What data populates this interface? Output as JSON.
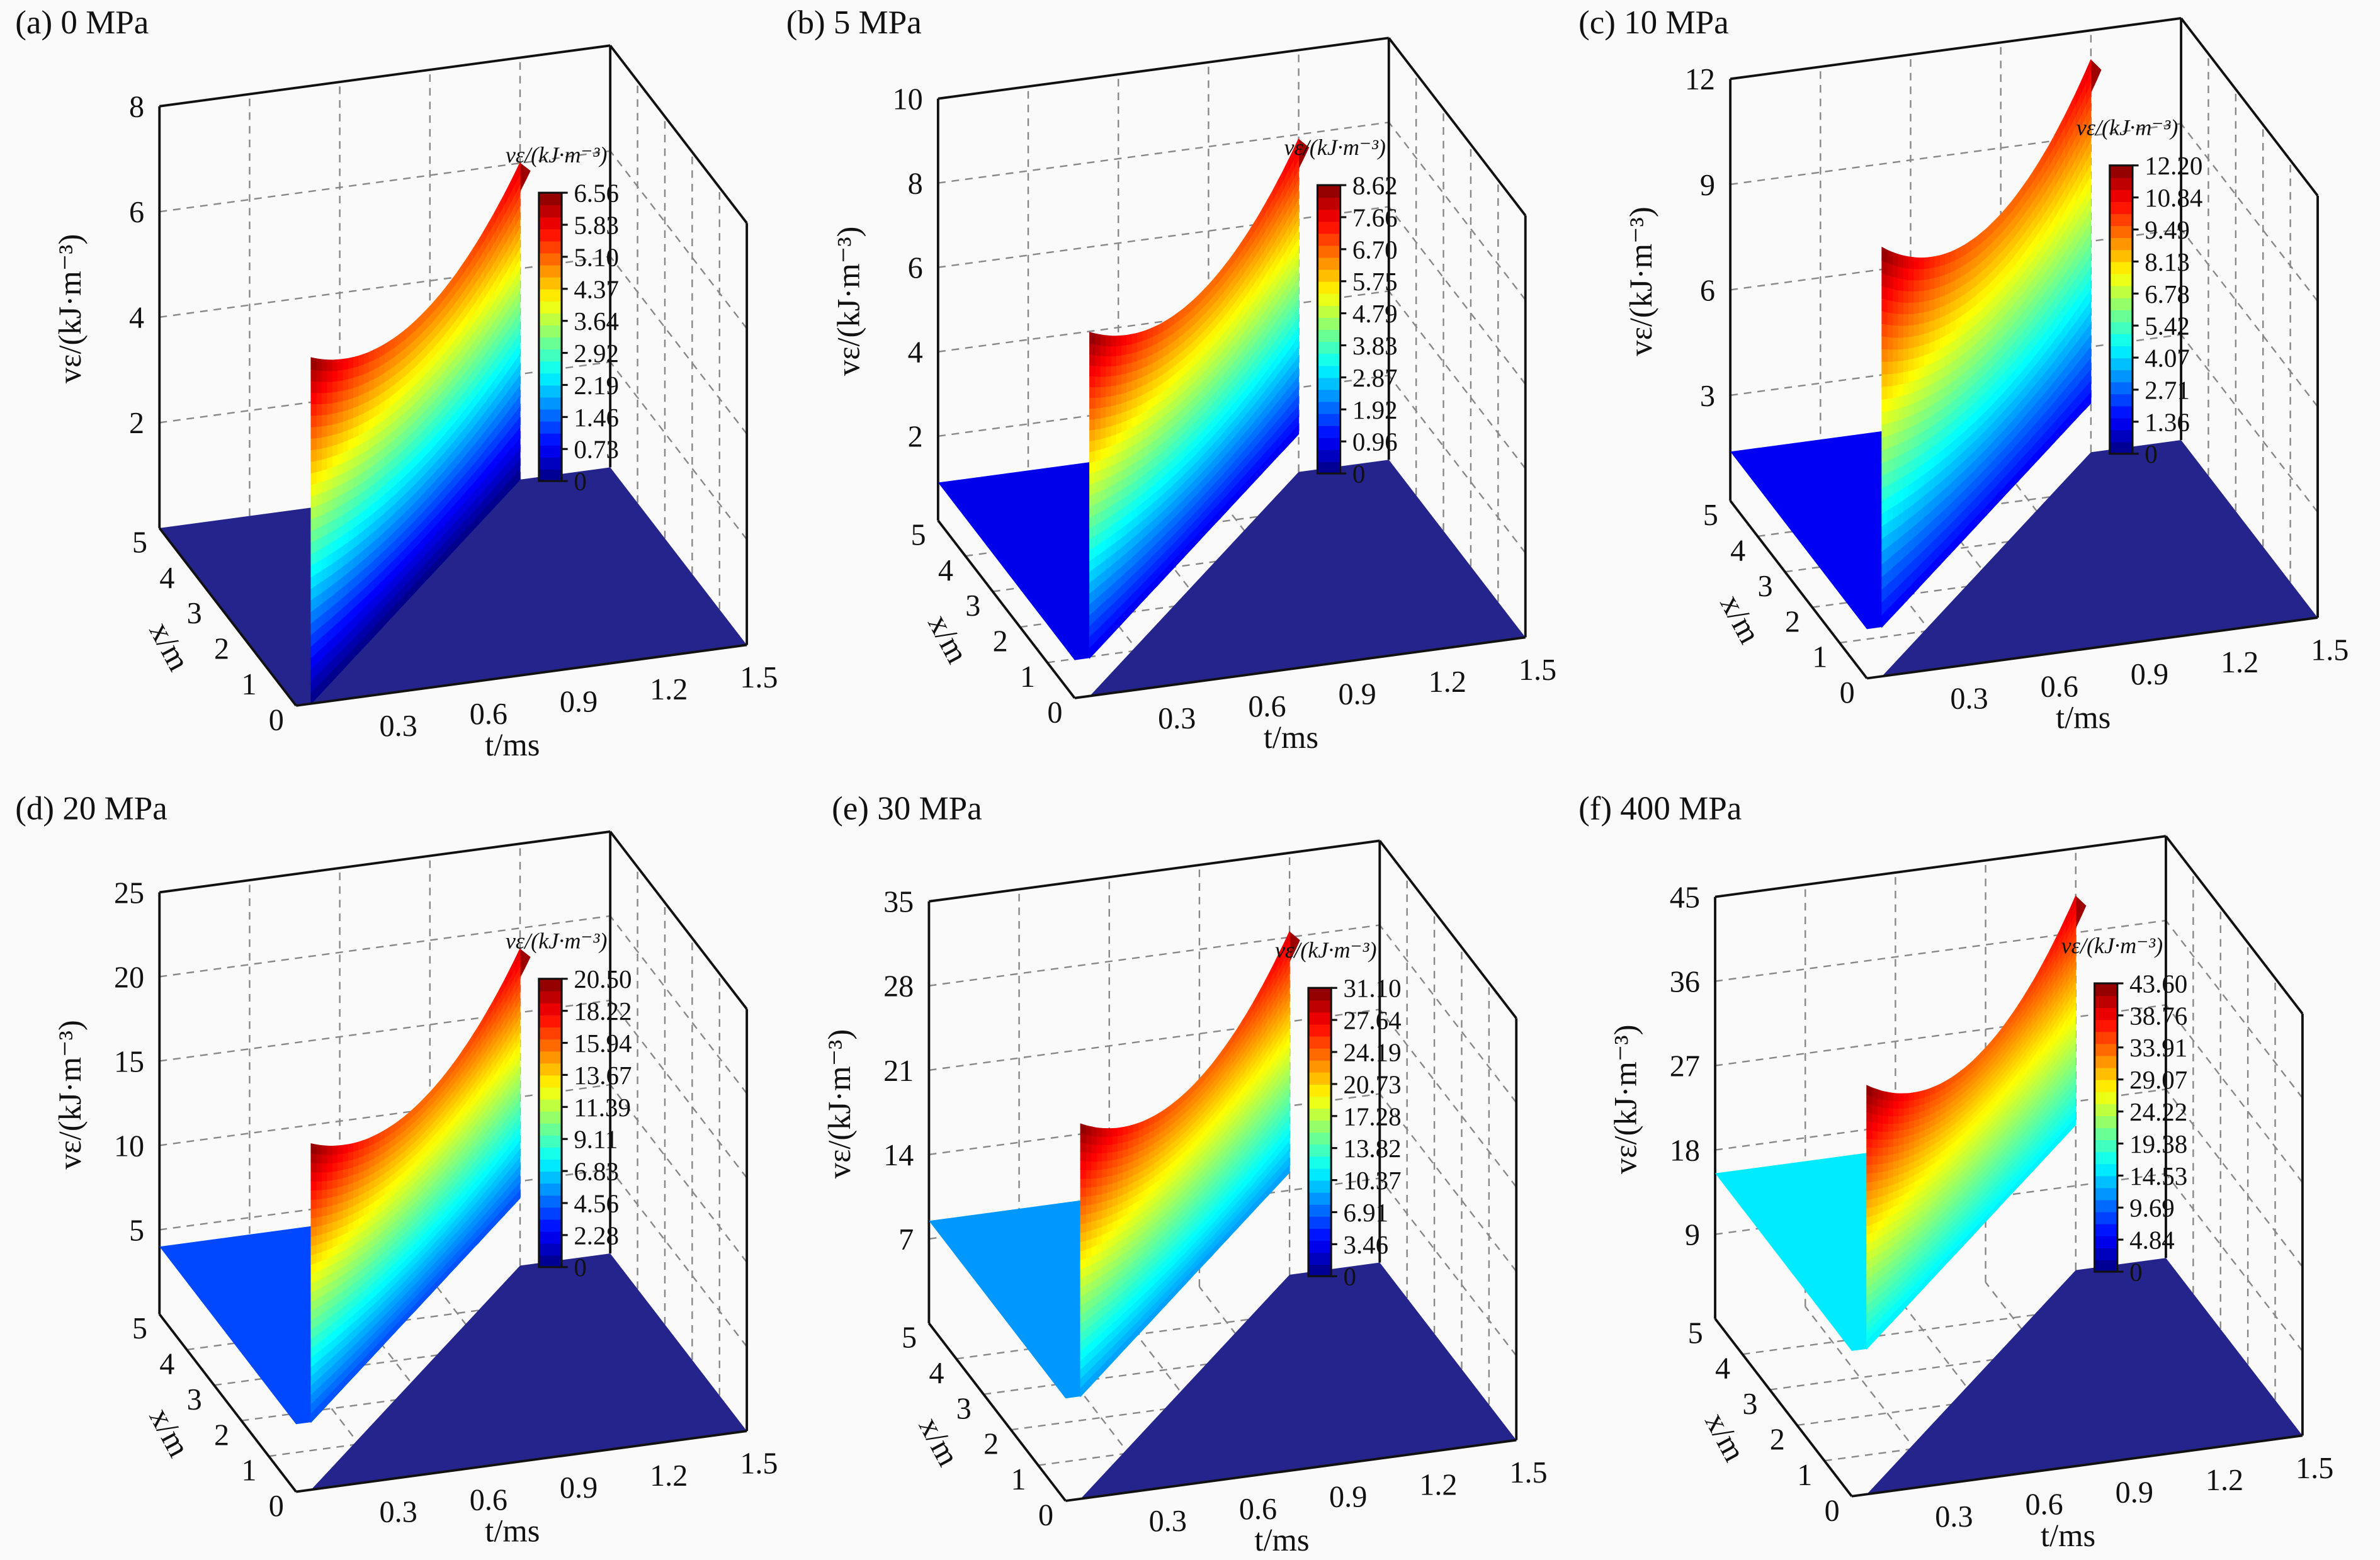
{
  "chart_data": [
    {
      "type": "surface",
      "title": "(a) 0 MPa",
      "xlabel": "t/ms",
      "ylabel": "x/m",
      "zlabel": "vε/(kJ·m⁻³)",
      "t_ticks": [
        "0.3",
        "0.6",
        "0.9",
        "1.2",
        "1.5"
      ],
      "x_ticks": [
        "0",
        "1",
        "2",
        "3",
        "4",
        "5"
      ],
      "z_ticks": [
        "2",
        "4",
        "6",
        "8"
      ],
      "zlim": [
        0,
        8
      ],
      "tlim": [
        0,
        1.5
      ],
      "xlim": [
        0,
        5
      ],
      "colorbar": {
        "title": "vε/(kJ·m⁻³)",
        "ticks": [
          "6.56",
          "5.83",
          "5.10",
          "4.37",
          "3.64",
          "2.92",
          "2.19",
          "1.46",
          "0.73",
          "0"
        ],
        "max": 6.56
      },
      "plateau_level": 0,
      "peak_max": 6.56
    },
    {
      "type": "surface",
      "title": "(b) 5 MPa",
      "xlabel": "t/ms",
      "ylabel": "x/m",
      "zlabel": "vε/(kJ·m⁻³)",
      "t_ticks": [
        "0.3",
        "0.6",
        "0.9",
        "1.2",
        "1.5"
      ],
      "x_ticks": [
        "0",
        "1",
        "2",
        "3",
        "4",
        "5"
      ],
      "z_ticks": [
        "2",
        "4",
        "6",
        "8",
        "10"
      ],
      "zlim": [
        0,
        10
      ],
      "tlim": [
        0,
        1.5
      ],
      "xlim": [
        0,
        5
      ],
      "colorbar": {
        "title": "vε/(kJ·m⁻³)",
        "ticks": [
          "8.62",
          "7.66",
          "6.70",
          "5.75",
          "4.79",
          "3.83",
          "2.87",
          "1.92",
          "0.96",
          "0"
        ],
        "max": 8.62
      },
      "plateau_level": 0.9,
      "peak_max": 8.62
    },
    {
      "type": "surface",
      "title": "(c) 10 MPa",
      "xlabel": "t/ms",
      "ylabel": "x/m",
      "zlabel": "vε/(kJ·m⁻³)",
      "t_ticks": [
        "0.3",
        "0.6",
        "0.9",
        "1.2",
        "1.5"
      ],
      "x_ticks": [
        "0",
        "1",
        "2",
        "3",
        "4",
        "5"
      ],
      "z_ticks": [
        "3",
        "6",
        "9",
        "12"
      ],
      "zlim": [
        0,
        12
      ],
      "tlim": [
        0,
        1.5
      ],
      "xlim": [
        0,
        5
      ],
      "colorbar": {
        "title": "vε/(kJ·m⁻³)",
        "ticks": [
          "12.20",
          "10.84",
          "9.49",
          "8.13",
          "6.78",
          "5.42",
          "4.07",
          "2.71",
          "1.36",
          "0"
        ],
        "max": 12.2
      },
      "plateau_level": 1.4,
      "peak_max": 12.2
    },
    {
      "type": "surface",
      "title": "(d) 20 MPa",
      "xlabel": "t/ms",
      "ylabel": "x/m",
      "zlabel": "vε/(kJ·m⁻³)",
      "t_ticks": [
        "0.3",
        "0.6",
        "0.9",
        "1.2",
        "1.5"
      ],
      "x_ticks": [
        "0",
        "1",
        "2",
        "3",
        "4",
        "5"
      ],
      "z_ticks": [
        "5",
        "10",
        "15",
        "20",
        "25"
      ],
      "zlim": [
        0,
        25
      ],
      "tlim": [
        0,
        1.5
      ],
      "xlim": [
        0,
        5
      ],
      "colorbar": {
        "title": "vε/(kJ·m⁻³)",
        "ticks": [
          "20.50",
          "18.22",
          "15.94",
          "13.67",
          "11.39",
          "9.11",
          "6.83",
          "4.56",
          "2.28",
          "0"
        ],
        "max": 20.5
      },
      "plateau_level": 4.0,
      "peak_max": 20.5
    },
    {
      "type": "surface",
      "title": "(e) 30 MPa",
      "xlabel": "t/ms",
      "ylabel": "x/m",
      "zlabel": "vε/(kJ·m⁻³)",
      "t_ticks": [
        "0.3",
        "0.6",
        "0.9",
        "1.2",
        "1.5"
      ],
      "x_ticks": [
        "0",
        "1",
        "2",
        "3",
        "4",
        "5"
      ],
      "z_ticks": [
        "7",
        "14",
        "21",
        "28",
        "35"
      ],
      "zlim": [
        0,
        35
      ],
      "tlim": [
        0,
        1.5
      ],
      "xlim": [
        0,
        5
      ],
      "colorbar": {
        "title": "vε/(kJ·m⁻³)",
        "ticks": [
          "31.10",
          "27.64",
          "24.19",
          "20.73",
          "17.28",
          "13.82",
          "10.37",
          "6.91",
          "3.46",
          "0"
        ],
        "max": 31.1
      },
      "plateau_level": 8.5,
      "peak_max": 31.1
    },
    {
      "type": "surface",
      "title": "(f) 400 MPa",
      "xlabel": "t/ms",
      "ylabel": "x/m",
      "zlabel": "vε/(kJ·m⁻³)",
      "t_ticks": [
        "0.3",
        "0.6",
        "0.9",
        "1.2",
        "1.5"
      ],
      "x_ticks": [
        "0",
        "1",
        "2",
        "3",
        "4",
        "5"
      ],
      "z_ticks": [
        "9",
        "18",
        "27",
        "36",
        "45"
      ],
      "zlim": [
        0,
        45
      ],
      "tlim": [
        0,
        1.5
      ],
      "xlim": [
        0,
        5
      ],
      "colorbar": {
        "title": "vε/(kJ·m⁻³)",
        "ticks": [
          "43.60",
          "38.76",
          "33.91",
          "29.07",
          "24.22",
          "19.38",
          "14.53",
          "9.69",
          "4.84",
          "0"
        ],
        "max": 43.6
      },
      "plateau_level": 15.5,
      "peak_max": 43.6
    }
  ],
  "colors": {
    "floor": "#24248c",
    "box": "#111111",
    "grid": "#888888"
  }
}
